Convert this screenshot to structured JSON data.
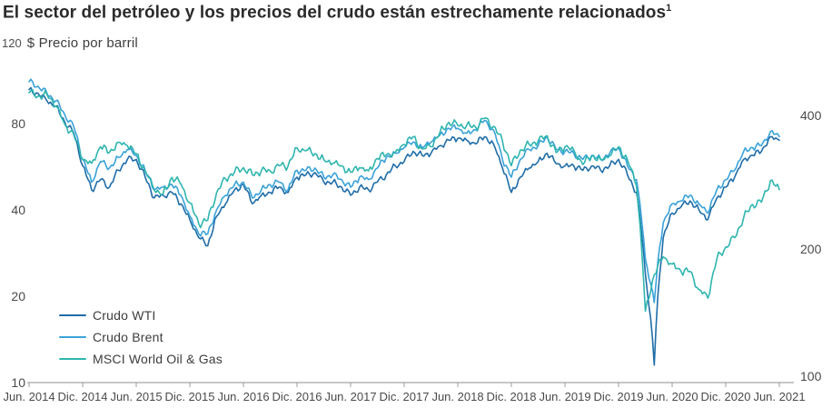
{
  "header": {
    "title": "El sector del petróleo y los precios del crudo están estrechamente relacionados",
    "footnote_marker": "1"
  },
  "chart_data": {
    "type": "line",
    "title": "El sector del petróleo y los precios del crudo están estrechamente relacionados",
    "x_frequency": "monthly",
    "x_start": "Jun. 2014",
    "x_end": "Jun. 2021",
    "x_tick_labels": [
      "Jun. 2014",
      "Dic. 2014",
      "Jun. 2015",
      "Dic. 2015",
      "Jun. 2016",
      "Dic. 2016",
      "Jun. 2017",
      "Dic. 2017",
      "Jun. 2018",
      "Dic. 2018",
      "Jun. 2019",
      "Dic. 2019",
      "Jun. 2020",
      "Dic. 2020",
      "Jun. 2021"
    ],
    "grid": false,
    "legend_position": "bottom-left",
    "y_left": {
      "scale": "log",
      "unit_label": "$ Precio por barril",
      "top_tick": "120",
      "ticks": [
        80,
        40,
        20,
        10
      ],
      "min": 10,
      "max": 120
    },
    "y_right": {
      "scale": "log",
      "ticks": [
        400,
        200,
        100
      ],
      "min": 100,
      "max": 500
    },
    "series": [
      {
        "name": "Crudo WTI",
        "axis": "left",
        "color": "#1f6da8",
        "values": [
          105,
          102,
          96,
          92,
          81,
          74,
          57,
          47,
          51,
          48,
          55,
          60,
          60,
          52,
          44,
          45,
          46,
          42,
          37,
          32,
          30,
          38,
          42,
          47,
          49,
          42,
          45,
          46,
          48,
          46,
          52,
          53,
          54,
          50,
          50,
          48,
          45,
          48,
          47,
          50,
          53,
          57,
          59,
          64,
          62,
          63,
          67,
          70,
          71,
          70,
          68,
          72,
          68,
          56,
          46,
          52,
          56,
          59,
          63,
          58,
          57,
          57,
          55,
          57,
          55,
          57,
          60,
          53,
          46,
          24,
          11.5,
          32,
          39,
          41,
          43,
          40,
          37,
          44,
          48,
          52,
          60,
          62,
          64,
          72,
          70
        ]
      },
      {
        "name": "Crudo Brent",
        "axis": "left",
        "color": "#3aa2d8",
        "values": [
          112,
          108,
          102,
          96,
          86,
          78,
          60,
          50,
          59,
          56,
          61,
          65,
          62,
          55,
          47,
          48,
          49,
          45,
          38,
          33,
          33,
          40,
          45,
          49,
          50,
          44,
          47,
          49,
          50,
          47,
          55,
          55,
          56,
          52,
          53,
          51,
          48,
          52,
          51,
          56,
          61,
          63,
          66,
          69,
          66,
          69,
          73,
          77,
          77,
          74,
          76,
          82,
          76,
          60,
          52,
          60,
          65,
          67,
          72,
          65,
          64,
          63,
          60,
          62,
          60,
          63,
          66,
          57,
          51,
          27,
          19,
          36,
          42,
          43,
          45,
          42,
          39,
          47,
          51,
          55,
          64,
          66,
          67,
          75,
          72
        ]
      },
      {
        "name": "MSCI World Oil & Gas",
        "axis": "right",
        "color": "#2fb5af",
        "values": [
          450,
          442,
          446,
          420,
          382,
          362,
          318,
          312,
          340,
          330,
          348,
          342,
          328,
          300,
          272,
          266,
          290,
          280,
          254,
          228,
          232,
          268,
          288,
          298,
          305,
          294,
          300,
          300,
          308,
          308,
          338,
          333,
          328,
          318,
          312,
          308,
          298,
          305,
          300,
          320,
          326,
          330,
          344,
          358,
          336,
          340,
          366,
          386,
          380,
          380,
          376,
          394,
          378,
          350,
          308,
          334,
          344,
          350,
          360,
          330,
          340,
          334,
          310,
          324,
          318,
          324,
          340,
          318,
          278,
          145,
          175,
          192,
          185,
          178,
          178,
          162,
          155,
          190,
          202,
          212,
          235,
          252,
          255,
          285,
          272
        ]
      }
    ]
  }
}
